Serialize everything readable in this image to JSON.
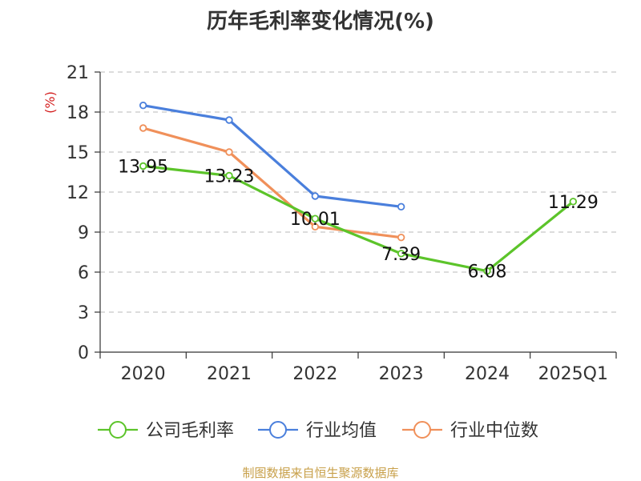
{
  "chart_data": {
    "type": "line",
    "title": "历年毛利率变化情况(%)",
    "unit": "(%)",
    "categories": [
      "2020",
      "2021",
      "2022",
      "2023",
      "2024",
      "2025Q1"
    ],
    "ylim": [
      0,
      21
    ],
    "yticks": [
      0,
      3,
      6,
      9,
      12,
      15,
      18,
      21
    ],
    "grid": true,
    "legend_position": "bottom",
    "series": [
      {
        "name": "公司毛利率",
        "color": "#5cc42a",
        "values": [
          13.95,
          13.23,
          10.01,
          7.39,
          6.08,
          11.29
        ],
        "labels": [
          "13.95",
          "13.23",
          "10.01",
          "7.39",
          "6.08",
          "11.29"
        ]
      },
      {
        "name": "行业均值",
        "color": "#4a7fdc",
        "values": [
          18.5,
          17.4,
          11.7,
          10.9,
          null,
          null
        ]
      },
      {
        "name": "行业中位数",
        "color": "#f0905a",
        "values": [
          16.8,
          15.0,
          9.4,
          8.6,
          null,
          null
        ]
      }
    ]
  },
  "footer": {
    "source": "制图数据来自恒生聚源数据库"
  }
}
